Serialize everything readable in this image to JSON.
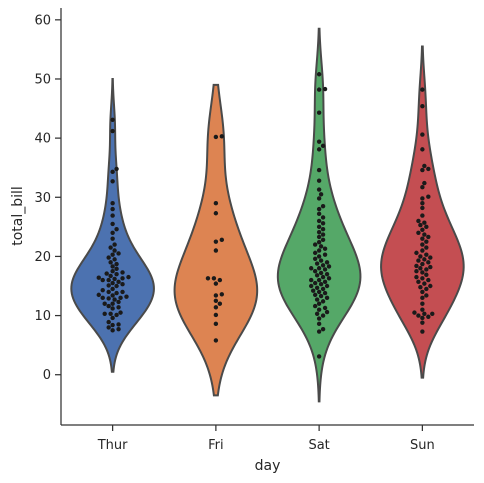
{
  "chart_data": {
    "type": "violin",
    "xlabel": "day",
    "ylabel": "total_bill",
    "categories": [
      "Thur",
      "Fri",
      "Sat",
      "Sun"
    ],
    "ylim": [
      -8.5,
      62
    ],
    "yticks": [
      0,
      10,
      20,
      30,
      40,
      50,
      60
    ],
    "grid": false,
    "legend": "none",
    "series": [
      {
        "name": "Thur",
        "color": "#4c72b0",
        "violin_min": 0.5,
        "violin_max": 50,
        "points": [
          7.5,
          7.7,
          8.0,
          8.4,
          8.5,
          8.9,
          9.6,
          10.1,
          10.3,
          10.3,
          10.5,
          11.2,
          11.4,
          11.6,
          12.0,
          12.0,
          12.3,
          12.7,
          12.9,
          13.0,
          13.0,
          13.2,
          13.4,
          13.5,
          13.8,
          14.0,
          14.0,
          14.3,
          14.5,
          15.0,
          15.1,
          15.3,
          15.5,
          15.7,
          16.0,
          16.0,
          16.2,
          16.3,
          16.4,
          16.5,
          16.7,
          17.0,
          17.1,
          17.3,
          17.5,
          17.9,
          18.3,
          18.7,
          19.0,
          19.5,
          19.8,
          20.3,
          20.5,
          21.0,
          21.5,
          22.0,
          23.0,
          24.0,
          24.6,
          25.5,
          26.9,
          28.0,
          29.0,
          32.7,
          34.3,
          34.8,
          41.2,
          43.1
        ]
      },
      {
        "name": "Fri",
        "color": "#dd8452",
        "violin_min": -3.5,
        "violin_max": 49,
        "points": [
          5.8,
          8.6,
          10.1,
          11.4,
          12.0,
          12.5,
          13.4,
          13.6,
          15.4,
          16.0,
          16.3,
          16.3,
          21.0,
          22.5,
          22.8,
          27.3,
          29.0,
          40.2,
          40.3
        ]
      },
      {
        "name": "Sat",
        "color": "#55a868",
        "violin_min": -4.5,
        "violin_max": 58.5,
        "points": [
          3.1,
          7.3,
          7.7,
          8.6,
          9.5,
          10.0,
          10.3,
          10.6,
          11.0,
          11.3,
          11.6,
          12.0,
          12.4,
          12.7,
          13.0,
          13.3,
          13.5,
          13.8,
          14.0,
          14.2,
          14.5,
          14.7,
          15.0,
          15.0,
          15.3,
          15.5,
          15.7,
          16.0,
          16.0,
          16.3,
          16.5,
          16.8,
          17.0,
          17.2,
          17.5,
          17.8,
          18.0,
          18.0,
          18.3,
          18.5,
          18.8,
          19.0,
          19.3,
          19.6,
          20.0,
          20.3,
          20.6,
          21.0,
          21.3,
          21.7,
          22.0,
          22.4,
          22.8,
          23.3,
          23.7,
          24.1,
          24.6,
          25.0,
          25.6,
          26.0,
          26.6,
          27.2,
          28.0,
          28.5,
          29.8,
          30.5,
          31.3,
          32.8,
          34.6,
          38.1,
          38.7,
          39.4,
          44.3,
          48.2,
          48.3,
          50.8
        ]
      },
      {
        "name": "Sun",
        "color": "#c44e52",
        "violin_min": -0.5,
        "violin_max": 55.5,
        "points": [
          7.3,
          8.8,
          9.6,
          9.8,
          10.0,
          10.3,
          10.3,
          10.5,
          11.0,
          12.0,
          13.0,
          13.4,
          14.0,
          14.5,
          14.8,
          15.0,
          15.4,
          15.7,
          16.0,
          16.3,
          16.5,
          16.9,
          17.3,
          17.5,
          17.8,
          18.0,
          18.2,
          18.4,
          18.7,
          19.0,
          19.3,
          19.5,
          19.8,
          20.0,
          20.3,
          20.6,
          21.0,
          21.5,
          22.0,
          22.5,
          23.0,
          23.3,
          23.7,
          24.0,
          24.5,
          25.0,
          25.3,
          25.7,
          26.0,
          26.9,
          28.2,
          29.0,
          29.8,
          30.1,
          31.7,
          32.4,
          34.6,
          34.8,
          35.3,
          38.1,
          40.6,
          45.4,
          48.2
        ]
      }
    ]
  }
}
